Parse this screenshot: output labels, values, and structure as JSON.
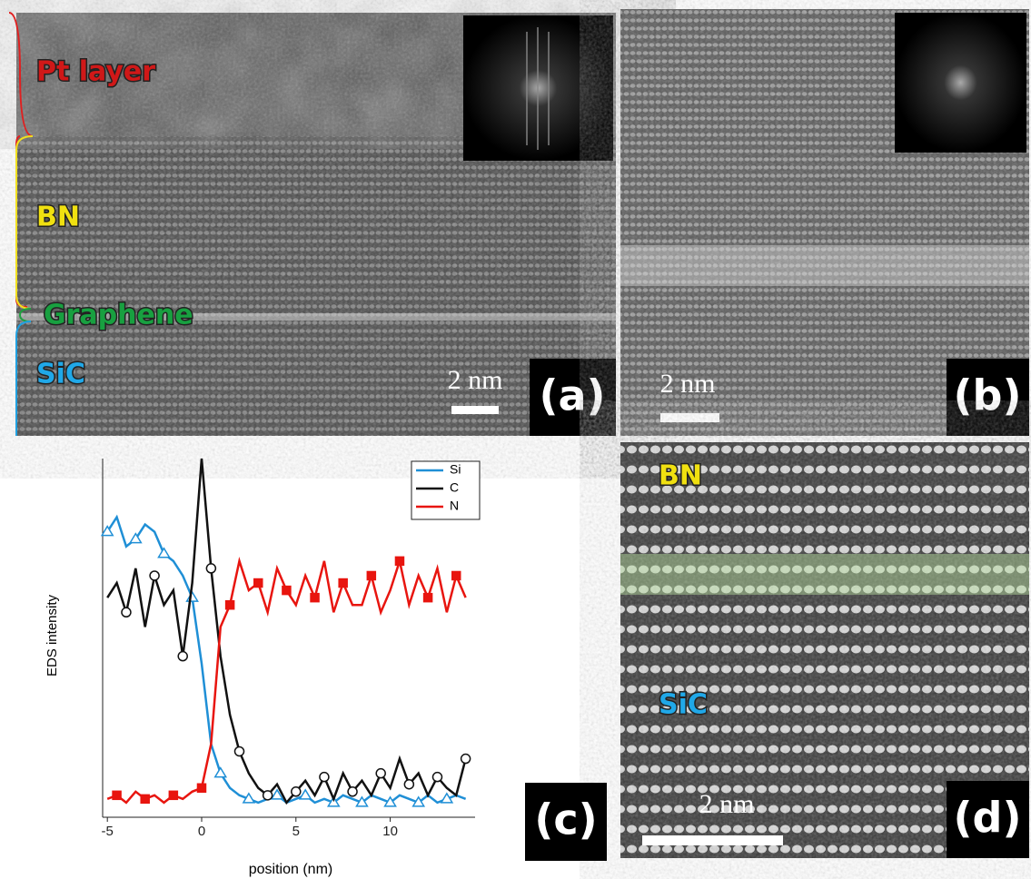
{
  "panels": {
    "a": {
      "layers": [
        "Pt layer",
        "BN",
        "Graphene",
        "SiC"
      ],
      "scale": "2 nm",
      "label": "(a)"
    },
    "b": {
      "scale": "2 nm",
      "label": "(b)"
    },
    "c": {
      "label": "(c)"
    },
    "d": {
      "layers": [
        "BN",
        "SiC"
      ],
      "scale": "2 nm",
      "label": "(d)"
    }
  },
  "chart_data": {
    "type": "line",
    "ylabel": "EDS intensity",
    "xlabel": "position (nm)",
    "xlim": [
      -5.25,
      14.5
    ],
    "ylim": [
      0,
      4.9
    ],
    "xticks": [
      -5,
      0,
      5,
      10
    ],
    "x": [
      -5,
      -4.5,
      -4,
      -3.5,
      -3,
      -2.5,
      -2,
      -1.5,
      -1,
      -0.5,
      0,
      0.5,
      1,
      1.5,
      2,
      2.5,
      3,
      3.5,
      4,
      4.5,
      5,
      5.5,
      6,
      6.5,
      7,
      7.5,
      8,
      8.5,
      9,
      9.5,
      10,
      10.5,
      11,
      11.5,
      12,
      12.5,
      13,
      13.5,
      14
    ],
    "series": [
      {
        "name": "Si",
        "color": "#1f8fd6",
        "marker": "triangle",
        "values": [
          3.9,
          4.1,
          3.7,
          3.8,
          4.0,
          3.9,
          3.6,
          3.5,
          3.3,
          3.0,
          2.1,
          1.0,
          0.6,
          0.4,
          0.3,
          0.25,
          0.2,
          0.25,
          0.3,
          0.2,
          0.25,
          0.3,
          0.2,
          0.25,
          0.2,
          0.3,
          0.25,
          0.2,
          0.3,
          0.25,
          0.2,
          0.3,
          0.25,
          0.2,
          0.3,
          0.2,
          0.25,
          0.3,
          0.25
        ]
      },
      {
        "name": "C",
        "color": "#111111",
        "marker": "circle",
        "values": [
          3.0,
          3.2,
          2.8,
          3.4,
          2.6,
          3.3,
          2.9,
          3.1,
          2.2,
          3.2,
          4.9,
          3.4,
          2.2,
          1.4,
          0.9,
          0.6,
          0.4,
          0.3,
          0.45,
          0.2,
          0.35,
          0.5,
          0.3,
          0.55,
          0.25,
          0.6,
          0.35,
          0.5,
          0.3,
          0.6,
          0.4,
          0.8,
          0.45,
          0.6,
          0.3,
          0.55,
          0.4,
          0.3,
          0.8
        ]
      },
      {
        "name": "N",
        "color": "#e8150f",
        "marker": "square",
        "values": [
          0.25,
          0.3,
          0.2,
          0.35,
          0.25,
          0.3,
          0.2,
          0.3,
          0.25,
          0.35,
          0.4,
          1.0,
          2.6,
          2.9,
          3.5,
          3.1,
          3.2,
          2.8,
          3.4,
          3.1,
          2.9,
          3.3,
          3.0,
          3.5,
          2.8,
          3.2,
          2.9,
          2.9,
          3.3,
          2.8,
          3.1,
          3.5,
          2.9,
          3.3,
          3.0,
          3.4,
          2.8,
          3.3,
          3.0
        ]
      }
    ]
  }
}
